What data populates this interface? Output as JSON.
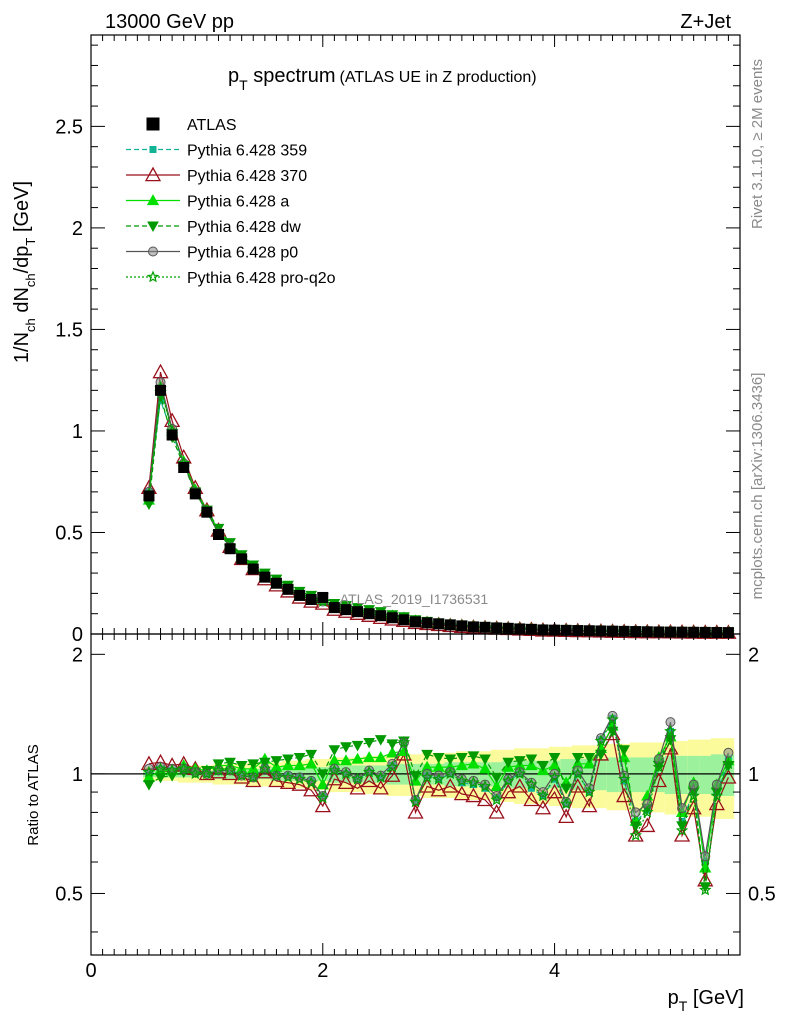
{
  "header": {
    "left": "13000 GeV pp",
    "right": "Z+Jet"
  },
  "title": {
    "main": "p",
    "main_sub": "T",
    "main_rest": " spectrum",
    "aux": "(ATLAS UE in Z production)"
  },
  "ylabel_top": {
    "p1": "1/N",
    "s1": "ch",
    "p2": " dN",
    "s2": "ch",
    "p3": "/dp",
    "s3": "T",
    "p4": " [GeV]"
  },
  "ylabel_bottom": "Ratio to ATLAS",
  "xlabel": {
    "p": "p",
    "sub": "T",
    "rest": " [GeV]"
  },
  "watermark": "ATLAS_2019_I1736531",
  "side_text_top": "Rivet 3.1.10, ≥ 2M events",
  "side_text_bottom": "mcplots.cern.ch [arXiv:1306.3436]",
  "colors": {
    "ATLAS": "#000000",
    "p359": "#11b395",
    "p370": "#99101a",
    "pa": "#00e000",
    "pdw": "#009900",
    "pp0": "#555555",
    "pq2o": "#00a000",
    "band_outer": "#fbfb9c",
    "band_inner": "#9cf29c"
  },
  "chart_data": [
    {
      "type": "line",
      "xlim": [
        0,
        5.6
      ],
      "ylim": [
        0,
        2.95
      ],
      "xticks": [
        0,
        2,
        4
      ],
      "yticks": [
        0,
        0.5,
        1,
        1.5,
        2,
        2.5
      ],
      "ytick_labels": [
        "0",
        "0.5",
        "1",
        "1.5",
        "2",
        "2.5"
      ],
      "x": [
        0.5,
        0.6,
        0.7,
        0.8,
        0.9,
        1.0,
        1.1,
        1.2,
        1.3,
        1.4,
        1.5,
        1.6,
        1.7,
        1.8,
        1.9,
        2.0,
        2.1,
        2.2,
        2.3,
        2.4,
        2.5,
        2.6,
        2.7,
        2.8,
        2.9,
        3.0,
        3.1,
        3.2,
        3.3,
        3.4,
        3.5,
        3.6,
        3.7,
        3.8,
        3.9,
        4.0,
        4.1,
        4.2,
        4.3,
        4.4,
        4.5,
        4.6,
        4.7,
        4.8,
        4.9,
        5.0,
        5.1,
        5.2,
        5.3,
        5.4,
        5.5
      ],
      "series": [
        {
          "name": "ATLAS",
          "style": "data",
          "values": [
            0.68,
            1.2,
            0.98,
            0.82,
            0.69,
            0.6,
            0.49,
            0.42,
            0.37,
            0.32,
            0.28,
            0.25,
            0.22,
            0.19,
            0.17,
            0.18,
            0.13,
            0.12,
            0.11,
            0.1,
            0.09,
            0.08,
            0.07,
            0.06,
            0.055,
            0.05,
            0.045,
            0.04,
            0.035,
            0.033,
            0.03,
            0.028,
            0.025,
            0.023,
            0.02,
            0.019,
            0.018,
            0.017,
            0.016,
            0.015,
            0.014,
            0.013,
            0.012,
            0.011,
            0.01,
            0.0095,
            0.009,
            0.0085,
            0.008,
            0.0075,
            0.007
          ]
        },
        {
          "name": "Pythia 6.428 359",
          "style": "p359",
          "values": [
            0.7,
            1.15,
            0.99,
            0.84,
            0.7,
            0.6,
            0.5,
            0.43,
            0.37,
            0.33,
            0.29,
            0.25,
            0.22,
            0.19,
            0.17,
            0.16,
            0.13,
            0.12,
            0.11,
            0.1,
            0.09,
            0.08,
            0.07,
            0.06,
            0.055,
            0.05,
            0.045,
            0.04,
            0.035,
            0.033,
            0.03,
            0.028,
            0.025,
            0.023,
            0.02,
            0.019,
            0.018,
            0.017,
            0.016,
            0.015,
            0.014,
            0.013,
            0.012,
            0.011,
            0.01,
            0.0095,
            0.009,
            0.0085,
            0.008,
            0.0075,
            0.007
          ]
        },
        {
          "name": "Pythia 6.428 370",
          "style": "p370",
          "values": [
            0.72,
            1.29,
            1.05,
            0.87,
            0.72,
            0.61,
            0.51,
            0.43,
            0.37,
            0.32,
            0.27,
            0.24,
            0.21,
            0.18,
            0.16,
            0.15,
            0.12,
            0.11,
            0.1,
            0.09,
            0.08,
            0.072,
            0.065,
            0.055,
            0.05,
            0.045,
            0.04,
            0.036,
            0.032,
            0.03,
            0.027,
            0.025,
            0.023,
            0.021,
            0.018,
            0.017,
            0.016,
            0.015,
            0.014,
            0.013,
            0.012,
            0.011,
            0.01,
            0.0095,
            0.009,
            0.0085,
            0.008,
            0.0075,
            0.007,
            0.0068,
            0.0065
          ]
        },
        {
          "name": "Pythia 6.428 a",
          "style": "pa",
          "values": [
            0.66,
            1.22,
            1.0,
            0.85,
            0.71,
            0.61,
            0.51,
            0.44,
            0.38,
            0.33,
            0.29,
            0.26,
            0.23,
            0.2,
            0.18,
            0.17,
            0.14,
            0.13,
            0.12,
            0.11,
            0.1,
            0.09,
            0.08,
            0.065,
            0.058,
            0.052,
            0.047,
            0.042,
            0.037,
            0.034,
            0.031,
            0.029,
            0.026,
            0.024,
            0.021,
            0.02,
            0.019,
            0.018,
            0.017,
            0.016,
            0.015,
            0.014,
            0.013,
            0.012,
            0.011,
            0.01,
            0.0095,
            0.009,
            0.0085,
            0.008,
            0.0075
          ]
        },
        {
          "name": "Pythia 6.428 dw",
          "style": "pdw",
          "values": [
            0.64,
            1.17,
            0.97,
            0.83,
            0.7,
            0.61,
            0.52,
            0.45,
            0.39,
            0.34,
            0.3,
            0.27,
            0.24,
            0.21,
            0.19,
            0.18,
            0.15,
            0.14,
            0.13,
            0.12,
            0.11,
            0.095,
            0.085,
            0.07,
            0.062,
            0.055,
            0.049,
            0.044,
            0.039,
            0.036,
            0.033,
            0.03,
            0.027,
            0.025,
            0.022,
            0.021,
            0.02,
            0.019,
            0.018,
            0.017,
            0.016,
            0.015,
            0.014,
            0.013,
            0.012,
            0.011,
            0.01,
            0.0095,
            0.009,
            0.0085,
            0.008
          ]
        },
        {
          "name": "Pythia 6.428 p0",
          "style": "pp0",
          "values": [
            0.7,
            1.24,
            1.01,
            0.84,
            0.7,
            0.6,
            0.5,
            0.43,
            0.37,
            0.32,
            0.28,
            0.25,
            0.22,
            0.19,
            0.17,
            0.16,
            0.13,
            0.12,
            0.11,
            0.1,
            0.09,
            0.08,
            0.07,
            0.06,
            0.055,
            0.05,
            0.045,
            0.04,
            0.035,
            0.033,
            0.03,
            0.028,
            0.025,
            0.023,
            0.02,
            0.019,
            0.018,
            0.017,
            0.016,
            0.015,
            0.014,
            0.013,
            0.012,
            0.011,
            0.01,
            0.0095,
            0.009,
            0.0085,
            0.008,
            0.0075,
            0.007
          ]
        },
        {
          "name": "Pythia 6.428 pro-q2o",
          "style": "pq2o",
          "values": [
            0.69,
            1.21,
            1.0,
            0.84,
            0.7,
            0.6,
            0.5,
            0.43,
            0.37,
            0.32,
            0.28,
            0.25,
            0.22,
            0.19,
            0.17,
            0.16,
            0.13,
            0.12,
            0.11,
            0.1,
            0.09,
            0.08,
            0.07,
            0.06,
            0.055,
            0.05,
            0.045,
            0.04,
            0.035,
            0.033,
            0.03,
            0.028,
            0.025,
            0.023,
            0.02,
            0.019,
            0.018,
            0.017,
            0.016,
            0.015,
            0.014,
            0.013,
            0.012,
            0.011,
            0.01,
            0.0095,
            0.009,
            0.0085,
            0.008,
            0.0075,
            0.007
          ]
        }
      ]
    },
    {
      "type": "line",
      "ylabel": "Ratio to ATLAS",
      "xlim": [
        0,
        5.6
      ],
      "ylim": [
        0.35,
        2.25
      ],
      "log_y": true,
      "xticks": [
        0,
        2,
        4
      ],
      "xtick_labels": [
        "0",
        "2",
        "4"
      ],
      "yticks": [
        0.5,
        1,
        2
      ],
      "ytick_labels": [
        "0.5",
        "1",
        "2"
      ],
      "x": [
        0.5,
        0.6,
        0.7,
        0.8,
        0.9,
        1.0,
        1.1,
        1.2,
        1.3,
        1.4,
        1.5,
        1.6,
        1.7,
        1.8,
        1.9,
        2.0,
        2.1,
        2.2,
        2.3,
        2.4,
        2.5,
        2.6,
        2.7,
        2.8,
        2.9,
        3.0,
        3.1,
        3.2,
        3.3,
        3.4,
        3.5,
        3.6,
        3.7,
        3.8,
        3.9,
        4.0,
        4.1,
        4.2,
        4.3,
        4.4,
        4.5,
        4.6,
        4.7,
        4.8,
        4.9,
        5.0,
        5.1,
        5.2,
        5.3,
        5.4,
        5.5
      ],
      "band_inner_halfwidth": [
        0.02,
        0.02,
        0.02,
        0.02,
        0.02,
        0.02,
        0.03,
        0.03,
        0.03,
        0.03,
        0.03,
        0.04,
        0.04,
        0.04,
        0.04,
        0.04,
        0.05,
        0.05,
        0.05,
        0.05,
        0.05,
        0.06,
        0.06,
        0.06,
        0.06,
        0.06,
        0.07,
        0.07,
        0.07,
        0.07,
        0.07,
        0.08,
        0.08,
        0.08,
        0.08,
        0.08,
        0.09,
        0.09,
        0.09,
        0.09,
        0.1,
        0.1,
        0.1,
        0.1,
        0.1,
        0.11,
        0.11,
        0.11,
        0.11,
        0.12,
        0.12
      ],
      "band_outer_halfwidth": [
        0.04,
        0.04,
        0.04,
        0.05,
        0.05,
        0.05,
        0.06,
        0.06,
        0.06,
        0.07,
        0.07,
        0.07,
        0.08,
        0.08,
        0.09,
        0.09,
        0.1,
        0.1,
        0.1,
        0.11,
        0.11,
        0.12,
        0.12,
        0.12,
        0.13,
        0.13,
        0.13,
        0.14,
        0.14,
        0.14,
        0.15,
        0.15,
        0.16,
        0.16,
        0.16,
        0.17,
        0.17,
        0.18,
        0.18,
        0.18,
        0.19,
        0.19,
        0.2,
        0.2,
        0.2,
        0.21,
        0.21,
        0.22,
        0.22,
        0.23,
        0.23
      ],
      "series": [
        {
          "name": "Pythia 6.428 359",
          "style": "p359",
          "values": [
            1.0,
            1.03,
            1.02,
            1.04,
            1.01,
            1.0,
            1.02,
            1.02,
            1.0,
            0.98,
            1.04,
            1.0,
            0.99,
            0.98,
            0.96,
            0.88,
            1.02,
            1.0,
            0.97,
            1.01,
            0.98,
            1.05,
            1.2,
            0.86,
            0.99,
            0.97,
            1.0,
            0.95,
            0.94,
            0.92,
            0.87,
            0.96,
            1.0,
            0.92,
            0.88,
            0.97,
            0.84,
            1.0,
            0.9,
            1.22,
            1.38,
            0.96,
            0.76,
            0.81,
            1.06,
            1.28,
            0.76,
            0.9,
            0.6,
            0.9,
            1.08
          ]
        },
        {
          "name": "Pythia 6.428 370",
          "style": "p370",
          "values": [
            1.06,
            1.07,
            1.05,
            1.06,
            1.03,
            1.0,
            1.01,
            1.0,
            0.98,
            0.96,
            1.01,
            0.96,
            0.95,
            0.94,
            0.91,
            0.83,
            0.97,
            0.95,
            0.92,
            0.96,
            0.92,
            0.99,
            1.12,
            0.8,
            0.93,
            0.91,
            0.93,
            0.89,
            0.88,
            0.86,
            0.8,
            0.9,
            0.93,
            0.86,
            0.82,
            0.9,
            0.78,
            0.93,
            0.83,
            1.12,
            1.26,
            0.88,
            0.7,
            0.74,
            0.96,
            1.16,
            0.7,
            0.82,
            0.54,
            0.84,
            0.98
          ]
        },
        {
          "name": "Pythia 6.428 a",
          "style": "pa",
          "values": [
            0.98,
            1.02,
            1.02,
            1.05,
            1.03,
            1.02,
            1.05,
            1.05,
            1.03,
            1.03,
            1.09,
            1.04,
            1.05,
            1.05,
            1.06,
            0.94,
            1.08,
            1.08,
            1.09,
            1.1,
            1.1,
            1.13,
            1.14,
            0.96,
            1.04,
            1.04,
            1.04,
            1.05,
            1.06,
            1.03,
            0.93,
            1.04,
            1.05,
            1.05,
            1.02,
            1.05,
            0.95,
            1.06,
            1.06,
            1.16,
            1.32,
            1.1,
            0.76,
            0.88,
            1.1,
            1.24,
            0.8,
            0.95,
            0.58,
            0.94,
            1.08
          ]
        },
        {
          "name": "Pythia 6.428 dw",
          "style": "pdw",
          "values": [
            0.94,
            0.98,
            0.99,
            1.01,
            1.01,
            1.02,
            1.06,
            1.07,
            1.05,
            1.06,
            1.07,
            1.08,
            1.09,
            1.1,
            1.12,
            1.0,
            1.15,
            1.17,
            1.18,
            1.2,
            1.22,
            1.19,
            1.21,
            0.99,
            1.12,
            1.1,
            1.09,
            1.1,
            1.11,
            1.09,
            0.98,
            1.07,
            1.08,
            1.09,
            1.05,
            1.1,
            0.92,
            1.1,
            1.1,
            1.12,
            1.28,
            1.15,
            0.74,
            0.82,
            1.05,
            1.22,
            0.74,
            0.9,
            0.52,
            0.9,
            1.05
          ]
        },
        {
          "name": "Pythia 6.428 p0",
          "style": "pp0",
          "values": [
            1.03,
            1.04,
            1.03,
            1.03,
            1.01,
            1.0,
            1.02,
            1.02,
            0.99,
            0.98,
            1.03,
            0.99,
            0.99,
            0.98,
            0.96,
            0.88,
            1.03,
            1.01,
            0.97,
            1.02,
            0.99,
            1.06,
            1.2,
            0.86,
            1.0,
            0.99,
            1.01,
            0.97,
            0.96,
            0.94,
            0.88,
            0.97,
            1.01,
            0.95,
            0.9,
            1.0,
            0.85,
            1.02,
            0.92,
            1.23,
            1.4,
            0.99,
            0.8,
            0.84,
            1.09,
            1.35,
            0.82,
            0.94,
            0.62,
            0.94,
            1.13
          ]
        },
        {
          "name": "Pythia 6.428 pro-q2o",
          "style": "pq2o",
          "values": [
            1.01,
            1.03,
            1.02,
            1.03,
            1.0,
            1.0,
            1.02,
            1.02,
            0.99,
            0.98,
            1.03,
            0.99,
            0.98,
            0.97,
            0.95,
            0.87,
            1.02,
            1.0,
            0.97,
            1.01,
            0.98,
            1.04,
            1.2,
            0.85,
            0.98,
            0.97,
            1.0,
            0.96,
            0.95,
            0.93,
            0.86,
            0.96,
            1.0,
            0.94,
            0.88,
            0.98,
            0.84,
            1.0,
            0.9,
            1.21,
            1.37,
            0.97,
            0.7,
            0.8,
            1.04,
            1.28,
            0.72,
            0.88,
            0.51,
            0.88,
            1.06
          ]
        }
      ]
    }
  ]
}
